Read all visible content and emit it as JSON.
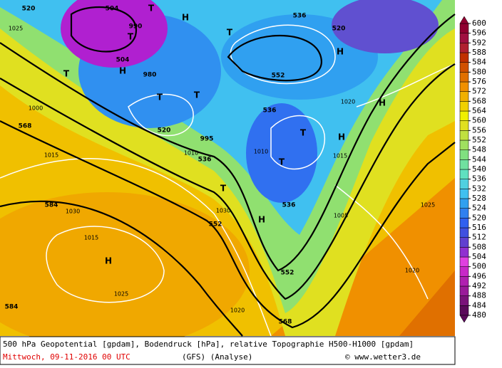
{
  "map": {
    "labels": [
      "504",
      "504",
      "520",
      "520",
      "536",
      "536",
      "552",
      "552",
      "552",
      "568",
      "568",
      "584",
      "584",
      "536",
      "536",
      "520",
      "T",
      "T",
      "T",
      "T",
      "T",
      "T",
      "T",
      "T",
      "T",
      "H",
      "H",
      "H",
      "H",
      "H",
      "H",
      "H",
      "1020",
      "1025",
      "1015",
      "1000",
      "1010",
      "1030",
      "1015",
      "1025",
      "1030",
      "1005",
      "995",
      "980",
      "990",
      "1020",
      "1010",
      "1015",
      "1025",
      "1020"
    ],
    "colorbar": {
      "levels": [
        480,
        484,
        488,
        492,
        496,
        500,
        504,
        508,
        512,
        516,
        520,
        524,
        528,
        532,
        536,
        540,
        544,
        548,
        552,
        556,
        560,
        564,
        568,
        572,
        576,
        580,
        584,
        588,
        592,
        596,
        600
      ],
      "colors": [
        "#5a0a5a",
        "#7a127a",
        "#9a1a9a",
        "#b020b0",
        "#c828c8",
        "#e040e0",
        "#9030d0",
        "#6040d0",
        "#4050e0",
        "#3060f0",
        "#3080f0",
        "#30a0f0",
        "#40c0f0",
        "#50d0e0",
        "#60e0c0",
        "#70e0a0",
        "#80e080",
        "#a0e060",
        "#c0e040",
        "#e0e020",
        "#f0f000",
        "#f0d000",
        "#f0b000",
        "#f09000",
        "#e07000",
        "#d05000",
        "#c03000",
        "#b02030",
        "#a01040",
        "#900030"
      ]
    }
  },
  "caption": {
    "line1": "500 hPa Geopotential [gpdam], Bodendruck [hPa], relative Topographie H500-H1000 [gpdam]",
    "date": "Mittwoch, 09-11-2016  00 UTC",
    "model": "(GFS)  (Analyse)",
    "copyright": "© www.wetter3.de"
  }
}
